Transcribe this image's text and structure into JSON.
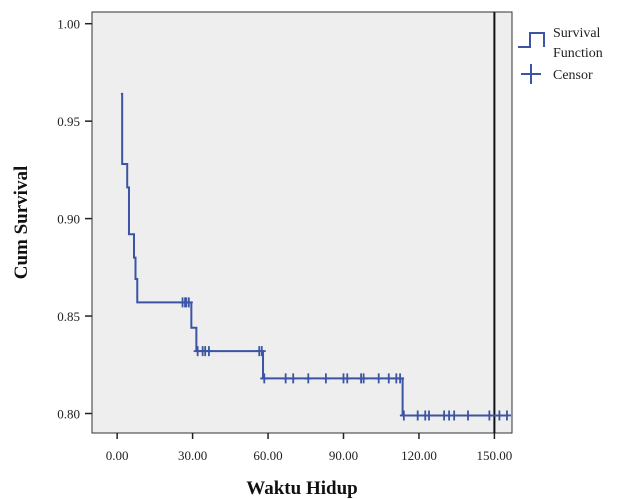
{
  "chart_data": {
    "type": "line",
    "subtype": "kaplan-meier-survival",
    "xlabel": "Waktu Hidup",
    "ylabel": "Cum Survival",
    "xlim": [
      -10,
      157
    ],
    "ylim": [
      0.79,
      1.006
    ],
    "x_ticks": [
      0,
      30,
      60,
      90,
      120,
      150
    ],
    "x_tick_labels": [
      "0.00",
      "30.00",
      "60.00",
      "90.00",
      "120.00",
      "150.00"
    ],
    "y_ticks": [
      0.8,
      0.85,
      0.9,
      0.95,
      1.0
    ],
    "y_tick_labels": [
      "0.80",
      "0.85",
      "0.90",
      "0.95",
      "1.00"
    ],
    "grid": false,
    "plot_background": "#eeeeee",
    "reference_line_x": 150,
    "legend_position": "top-right, outside plot",
    "series": [
      {
        "name": "Survival Function",
        "color": "#3b54a4",
        "steps": [
          {
            "x": 1.5,
            "y": 0.964
          },
          {
            "x": 2.0,
            "y": 0.928
          },
          {
            "x": 4.0,
            "y": 0.916
          },
          {
            "x": 4.7,
            "y": 0.892
          },
          {
            "x": 6.7,
            "y": 0.88
          },
          {
            "x": 7.3,
            "y": 0.869
          },
          {
            "x": 8.0,
            "y": 0.857
          },
          {
            "x": 29.5,
            "y": 0.844
          },
          {
            "x": 31.5,
            "y": 0.832
          },
          {
            "x": 58.0,
            "y": 0.818
          },
          {
            "x": 113.5,
            "y": 0.799
          }
        ],
        "end_x": 155
      },
      {
        "name": "Censor",
        "color": "#3b54a4",
        "marker": "plus",
        "points": [
          {
            "x": 26.0,
            "y": 0.857
          },
          {
            "x": 27.0,
            "y": 0.857
          },
          {
            "x": 27.5,
            "y": 0.857
          },
          {
            "x": 28.5,
            "y": 0.857
          },
          {
            "x": 32.0,
            "y": 0.832
          },
          {
            "x": 34.0,
            "y": 0.832
          },
          {
            "x": 35.0,
            "y": 0.832
          },
          {
            "x": 36.5,
            "y": 0.832
          },
          {
            "x": 56.5,
            "y": 0.832
          },
          {
            "x": 57.5,
            "y": 0.832
          },
          {
            "x": 58.5,
            "y": 0.818
          },
          {
            "x": 67.0,
            "y": 0.818
          },
          {
            "x": 70.0,
            "y": 0.818
          },
          {
            "x": 76.0,
            "y": 0.818
          },
          {
            "x": 83.0,
            "y": 0.818
          },
          {
            "x": 90.0,
            "y": 0.818
          },
          {
            "x": 91.5,
            "y": 0.818
          },
          {
            "x": 97.0,
            "y": 0.818
          },
          {
            "x": 98.0,
            "y": 0.818
          },
          {
            "x": 104.0,
            "y": 0.818
          },
          {
            "x": 108.0,
            "y": 0.818
          },
          {
            "x": 111.0,
            "y": 0.818
          },
          {
            "x": 112.5,
            "y": 0.818
          },
          {
            "x": 114.0,
            "y": 0.799
          },
          {
            "x": 119.5,
            "y": 0.799
          },
          {
            "x": 122.5,
            "y": 0.799
          },
          {
            "x": 124.0,
            "y": 0.799
          },
          {
            "x": 130.0,
            "y": 0.799
          },
          {
            "x": 132.0,
            "y": 0.799
          },
          {
            "x": 134.0,
            "y": 0.799
          },
          {
            "x": 139.5,
            "y": 0.799
          },
          {
            "x": 148.0,
            "y": 0.799
          },
          {
            "x": 152.0,
            "y": 0.799
          },
          {
            "x": 155.0,
            "y": 0.799
          }
        ]
      }
    ],
    "legend": {
      "survival_line1": "Survival",
      "survival_line2": "Function",
      "censor": "Censor"
    }
  }
}
